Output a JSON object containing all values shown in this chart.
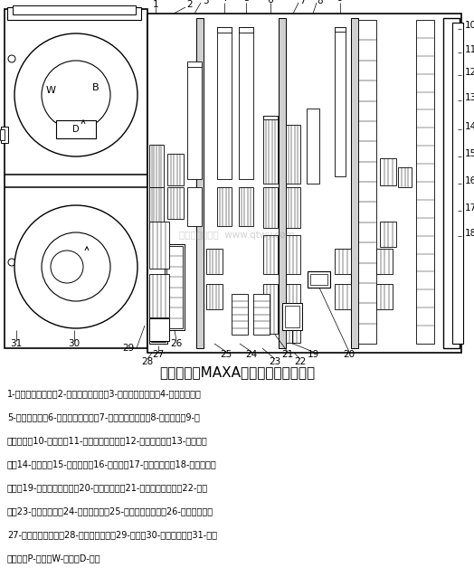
{
  "title": "本田轿车的MAXA型自动变速器示意图",
  "caption_lines": [
    "1-第二轴一档齿轮；2-第二轴三档齿轮；3-第一轴三档齿轮；4-三档离合器；",
    "5-四档离合器；6-第一轴四档齿轮；7-第一轴倒档齿轮；8-倒档惰轮；9-第",
    "一轴惰轮；10-第一轴；11-第二轴二档齿轮；12-第二轴惰轮；13-驻车档齿",
    "轮；14-第二轴；15-驻车锁销；16-中间轴；17-中间轴惰轮；18-中间轴二档",
    "齿轮；19-第二轴倒档齿轮；20-倒档啮合套；21-第二轴四档齿轮；22-伺服",
    "阀；23-二档离合器；24-一档离合器；25-中间轴一档齿轮；26-单向离合器；",
    "27-一档固定离合器；28-主减速齿轮副；29-油泵；30-液力变矩器；31-锁止",
    "离合器；P-泵轮；W-涡轮；D-导轮"
  ],
  "bg_color": "#ffffff",
  "line_color": "#000000",
  "watermark": "汽车维修技术网  www.qtwy.com",
  "fig_width": 5.24,
  "fig_height": 6.38,
  "dpi": 100
}
